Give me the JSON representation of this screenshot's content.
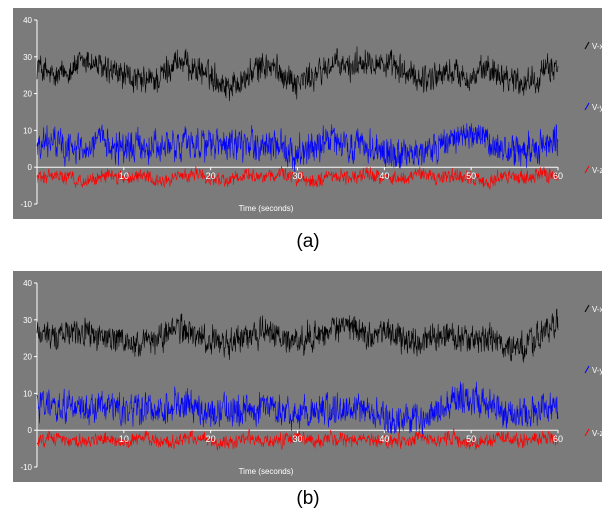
{
  "chart_data": [
    {
      "type": "line",
      "caption": "(a)",
      "xlabel": "Time (seconds)",
      "ylabel": "",
      "xlim": [
        0,
        60
      ],
      "ylim": [
        -10,
        40
      ],
      "x_ticks": [
        10,
        20,
        30,
        40,
        50,
        60
      ],
      "y_ticks": [
        -10,
        0,
        10,
        20,
        30,
        40
      ],
      "legend_position": "right",
      "grid": false,
      "series": [
        {
          "name": "V-x",
          "color": "#000000",
          "x": [
            0,
            2,
            4,
            6,
            8,
            10,
            12,
            14,
            16,
            18,
            20,
            22,
            24,
            26,
            28,
            30,
            32,
            34,
            36,
            38,
            40,
            42,
            44,
            46,
            48,
            50,
            52,
            54,
            56,
            58,
            60
          ],
          "values": [
            28,
            24,
            27,
            29,
            26,
            25,
            23,
            24,
            29,
            27,
            25,
            22,
            24,
            28,
            26,
            23,
            25,
            28,
            27,
            30,
            28,
            26,
            24,
            25,
            26,
            24,
            27,
            25,
            23,
            25,
            28
          ]
        },
        {
          "name": "V-y",
          "color": "#0000ff",
          "x": [
            0,
            2,
            4,
            6,
            8,
            10,
            12,
            14,
            16,
            18,
            20,
            22,
            24,
            26,
            28,
            30,
            32,
            34,
            36,
            38,
            40,
            42,
            44,
            46,
            48,
            50,
            52,
            54,
            56,
            58,
            60
          ],
          "values": [
            6,
            7,
            5,
            6,
            7,
            5,
            6,
            5,
            6,
            7,
            6,
            5,
            6,
            6,
            5,
            4,
            6,
            7,
            5,
            6,
            4,
            3,
            4,
            5,
            8,
            9,
            6,
            5,
            4,
            6,
            7
          ]
        },
        {
          "name": "V-z",
          "color": "#ff0000",
          "x": [
            0,
            2,
            4,
            6,
            8,
            10,
            12,
            14,
            16,
            18,
            20,
            22,
            24,
            26,
            28,
            30,
            32,
            34,
            36,
            38,
            40,
            42,
            44,
            46,
            48,
            50,
            52,
            54,
            56,
            58,
            60
          ],
          "values": [
            -3,
            -2,
            -3,
            -4,
            -2,
            -3,
            -2,
            -4,
            -3,
            -2,
            -3,
            -4,
            -2,
            -3,
            -2,
            -3,
            -4,
            -2,
            -3,
            -2,
            -3,
            -3,
            -2,
            -3,
            -2,
            -3,
            -4,
            -2,
            -3,
            -2,
            -3
          ]
        }
      ]
    },
    {
      "type": "line",
      "caption": "(b)",
      "xlabel": "Time (seconds)",
      "ylabel": "",
      "xlim": [
        0,
        60
      ],
      "ylim": [
        -10,
        40
      ],
      "x_ticks": [
        10,
        20,
        30,
        40,
        50,
        60
      ],
      "y_ticks": [
        -10,
        0,
        10,
        20,
        30,
        40
      ],
      "legend_position": "right",
      "grid": false,
      "series": [
        {
          "name": "V-x",
          "color": "#000000",
          "x": [
            0,
            2,
            4,
            6,
            8,
            10,
            12,
            14,
            16,
            18,
            20,
            22,
            24,
            26,
            28,
            30,
            32,
            34,
            36,
            38,
            40,
            42,
            44,
            46,
            48,
            50,
            52,
            54,
            56,
            58,
            60
          ],
          "values": [
            27,
            25,
            28,
            26,
            25,
            24,
            23,
            25,
            28,
            26,
            24,
            23,
            26,
            27,
            25,
            24,
            26,
            27,
            28,
            26,
            27,
            25,
            24,
            25,
            26,
            24,
            25,
            23,
            22,
            26,
            29
          ]
        },
        {
          "name": "V-y",
          "color": "#0000ff",
          "x": [
            0,
            2,
            4,
            6,
            8,
            10,
            12,
            14,
            16,
            18,
            20,
            22,
            24,
            26,
            28,
            30,
            32,
            34,
            36,
            38,
            40,
            42,
            44,
            46,
            48,
            50,
            52,
            54,
            56,
            58,
            60
          ],
          "values": [
            6,
            7,
            6,
            5,
            7,
            6,
            5,
            6,
            7,
            6,
            5,
            6,
            5,
            6,
            5,
            4,
            6,
            6,
            5,
            6,
            4,
            3,
            3,
            5,
            8,
            9,
            6,
            5,
            4,
            6,
            7
          ]
        },
        {
          "name": "V-z",
          "color": "#ff0000",
          "x": [
            0,
            2,
            4,
            6,
            8,
            10,
            12,
            14,
            16,
            18,
            20,
            22,
            24,
            26,
            28,
            30,
            32,
            34,
            36,
            38,
            40,
            42,
            44,
            46,
            48,
            50,
            52,
            54,
            56,
            58,
            60
          ],
          "values": [
            -3,
            -2,
            -3,
            -3,
            -2,
            -4,
            -2,
            -3,
            -3,
            -2,
            -3,
            -4,
            -2,
            -3,
            -3,
            -2,
            -3,
            -2,
            -3,
            -2,
            -3,
            -3,
            -2,
            -3,
            -2,
            -4,
            -3,
            -2,
            -3,
            -2,
            -3
          ]
        }
      ]
    }
  ]
}
